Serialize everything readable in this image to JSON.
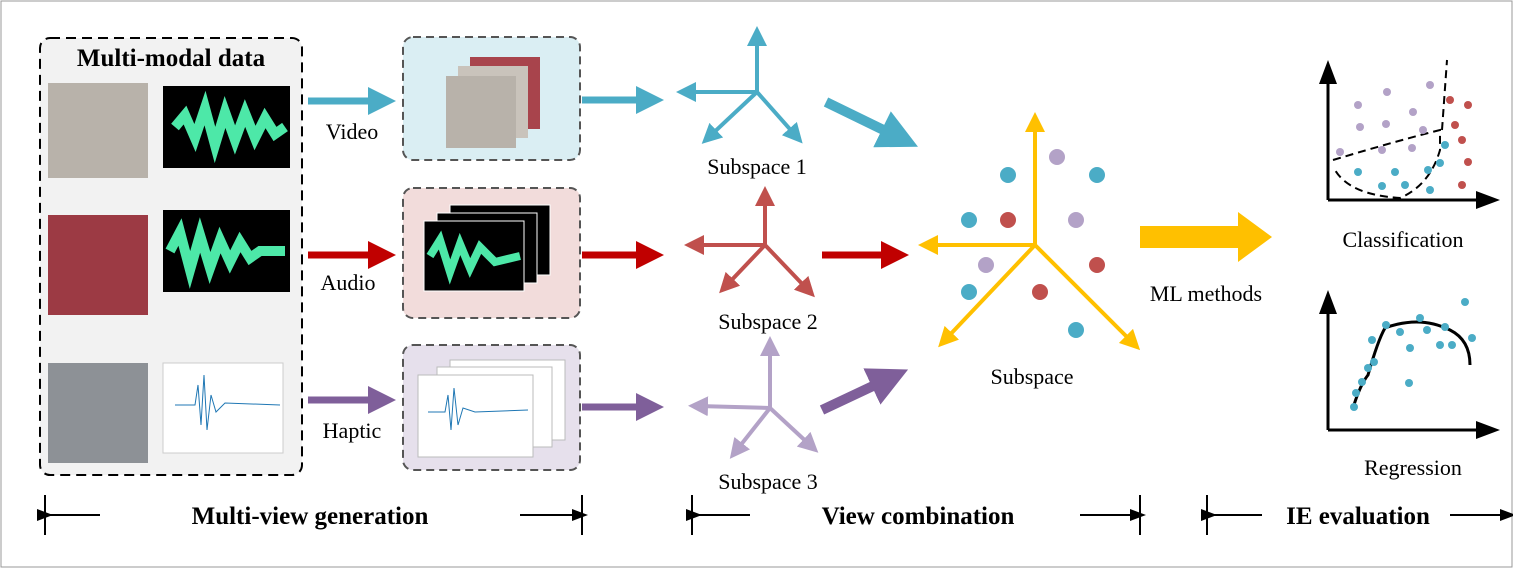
{
  "data_box": {
    "title": "Multi-modal data"
  },
  "modalities": [
    {
      "label": "Video"
    },
    {
      "label": "Audio"
    },
    {
      "label": "Haptic"
    }
  ],
  "subspaces": [
    {
      "label": "Subspace 1"
    },
    {
      "label": "Subspace 2"
    },
    {
      "label": "Subspace 3"
    }
  ],
  "combined": {
    "label": "Subspace"
  },
  "methods": {
    "label": "ML methods"
  },
  "tasks": [
    {
      "label": "Classification"
    },
    {
      "label": "Regression"
    }
  ],
  "stages": [
    {
      "label": "Multi-view generation"
    },
    {
      "label": "View combination"
    },
    {
      "label": "IE evaluation"
    }
  ]
}
